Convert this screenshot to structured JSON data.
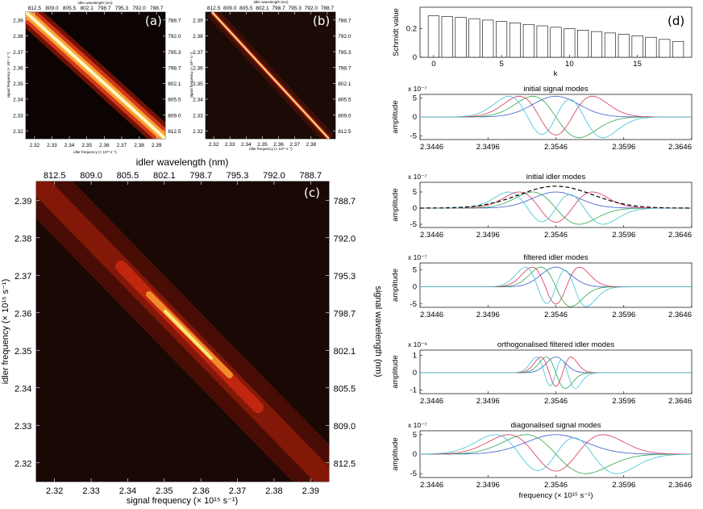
{
  "chart_data": [
    {
      "id": "a",
      "type": "heatmap",
      "panel_label": "(a)",
      "top_xlabel": "idler wavelength (nm)",
      "top_ticks": [
        "812.5",
        "809.0",
        "805.5",
        "802.1",
        "798.7",
        "795.3",
        "792.0",
        "788.7"
      ],
      "xlabel": "idler frequency (× 10¹⁵ s⁻¹)",
      "x_ticks": [
        "2.32",
        "2.33",
        "2.34",
        "2.35",
        "2.36",
        "2.37",
        "2.38",
        "2.39"
      ],
      "ylabel": "signal frequency (× 10¹⁵ s⁻¹)",
      "y_ticks": [
        "2.39",
        "2.38",
        "2.37",
        "2.36",
        "2.35",
        "2.34",
        "2.33",
        "2.32"
      ],
      "right_ticks": [
        "788.7",
        "792.0",
        "795.3",
        "798.7",
        "802.1",
        "805.5",
        "809.0",
        "812.5"
      ],
      "xlim": [
        2.315,
        2.395
      ],
      "ylim": [
        2.315,
        2.395
      ],
      "ridge": {
        "description_free": true,
        "sum_frequency": 4.71,
        "width": 0.012
      }
    },
    {
      "id": "b",
      "type": "heatmap",
      "panel_label": "(b)",
      "top_xlabel": "idler wavelength (nm)",
      "top_ticks": [
        "812.5",
        "809.0",
        "805.5",
        "802.1",
        "798.7",
        "795.3",
        "792.0",
        "788.7"
      ],
      "xlabel": "idler frequency (× 10¹⁵ s⁻¹)",
      "x_ticks": [
        "2.32",
        "2.33",
        "2.34",
        "2.35",
        "2.36",
        "2.37",
        "2.38"
      ],
      "ylabel": "signal frequency (× 10¹⁵ s⁻¹)",
      "y_ticks": [
        "2.39",
        "2.38",
        "2.37",
        "2.36",
        "2.35",
        "2.34",
        "2.33",
        "2.32"
      ],
      "right_ticks": [
        "788.7",
        "792.0",
        "795.3",
        "798.7",
        "802.1",
        "805.5",
        "809.0",
        "812.5"
      ],
      "xlim": [
        2.315,
        2.395
      ],
      "ylim": [
        2.315,
        2.395
      ],
      "ridge": {
        "sum_frequency": 4.711,
        "width": 0.0015
      }
    },
    {
      "id": "c",
      "type": "heatmap",
      "panel_label": "(c)",
      "top_xlabel": "idler wavelength (nm)",
      "top_ticks": [
        "812.5",
        "809.0",
        "805.5",
        "802.1",
        "798.7",
        "795.3",
        "792.0",
        "788.7"
      ],
      "xlabel": "signal frequency (× 10¹⁵ s⁻¹)",
      "x_ticks": [
        "2.32",
        "2.33",
        "2.34",
        "2.35",
        "2.36",
        "2.37",
        "2.38",
        "2.39"
      ],
      "ylabel": "idler frequency (× 10¹⁵ s⁻¹)",
      "y_ticks": [
        "2.39",
        "2.38",
        "2.37",
        "2.36",
        "2.35",
        "2.34",
        "2.33",
        "2.32"
      ],
      "right_ylabel": "signal wavelength (nm)",
      "right_ticks": [
        "788.7",
        "792.0",
        "795.3",
        "798.7",
        "802.1",
        "805.5",
        "809.0",
        "812.5"
      ],
      "xlim": [
        2.315,
        2.395
      ],
      "ylim": [
        2.315,
        2.395
      ],
      "ridge": {
        "sum_frequency": 4.71,
        "center": 2.3546,
        "width": 0.006
      }
    },
    {
      "id": "d",
      "type": "bar",
      "panel_label": "(d)",
      "xlabel": "k",
      "ylabel": "Schmidt value",
      "x_ticks": [
        "0",
        "5",
        "10",
        "15"
      ],
      "y_ticks": [
        "0",
        "0.2"
      ],
      "ylim": [
        0,
        0.35
      ],
      "categories": [
        0,
        1,
        2,
        3,
        4,
        5,
        6,
        7,
        8,
        9,
        10,
        11,
        12,
        13,
        14,
        15,
        16,
        17,
        18
      ],
      "values": [
        0.29,
        0.285,
        0.28,
        0.27,
        0.26,
        0.25,
        0.24,
        0.23,
        0.22,
        0.21,
        0.2,
        0.19,
        0.18,
        0.17,
        0.16,
        0.15,
        0.14,
        0.125,
        0.11
      ]
    },
    {
      "id": "e",
      "type": "line",
      "title": "initial signal modes",
      "ylabel": "amplitude",
      "exponent": "x 10⁻⁷",
      "y_ticks": [
        "5",
        "0",
        "-5"
      ],
      "ylim": [
        -6,
        6
      ],
      "x_ticks": [
        "2.3446",
        "2.3496",
        "2.3546",
        "2.3596",
        "2.3646"
      ],
      "xlim": [
        2.3446,
        2.3646
      ],
      "center": 2.3546,
      "spacing": 0.0017,
      "scale": 5.5,
      "modes": 4,
      "dashed_envelope": false
    },
    {
      "id": "f",
      "type": "line",
      "title": "initial idler modes",
      "ylabel": "amplitude",
      "exponent": "x 10⁻⁷",
      "y_ticks": [
        "5",
        "0",
        "-5"
      ],
      "ylim": [
        -6,
        8
      ],
      "x_ticks": [
        "2.3446",
        "2.3496",
        "2.3546",
        "2.3596",
        "2.3646"
      ],
      "xlim": [
        2.3446,
        2.3646
      ],
      "center": 2.3546,
      "spacing": 0.0017,
      "scale": 5.0,
      "modes": 4,
      "dashed_envelope": true,
      "envelope_peak": 6.8
    },
    {
      "id": "g",
      "type": "line",
      "title": "filtered idler modes",
      "ylabel": "amplitude",
      "exponent": "x 10⁻⁷",
      "y_ticks": [
        "5",
        "0",
        "-5"
      ],
      "ylim": [
        -6,
        7
      ],
      "x_ticks": [
        "2.3446",
        "2.3496",
        "2.3546",
        "2.3596",
        "2.3646"
      ],
      "xlim": [
        2.3446,
        2.3646
      ],
      "center": 2.3546,
      "spacing": 0.0011,
      "scale": 5.8,
      "modes": 4,
      "dashed_envelope": false
    },
    {
      "id": "h",
      "type": "line",
      "title": "orthogonalised filtered idler modes",
      "ylabel": "amplitude",
      "exponent": "x 10⁻⁶",
      "y_ticks": [
        "1",
        "0",
        "-1"
      ],
      "ylim": [
        -1.2,
        1.3
      ],
      "x_ticks": [
        "2.3446",
        "2.3496",
        "2.3546",
        "2.3596",
        "2.3646"
      ],
      "xlim": [
        2.3446,
        2.3646
      ],
      "center": 2.3546,
      "spacing": 0.0007,
      "scale": 0.9,
      "modes": 4,
      "dashed_envelope": false
    },
    {
      "id": "i",
      "type": "line",
      "title": "diagonalised signal modes",
      "ylabel": "amplitude",
      "exponent": "x 10⁻⁷",
      "y_ticks": [
        "5",
        "0",
        "-5"
      ],
      "ylim": [
        -6,
        6
      ],
      "x_ticks": [
        "2.3446",
        "2.3496",
        "2.3546",
        "2.3596",
        "2.3646"
      ],
      "xlim": [
        2.3446,
        2.3646
      ],
      "xlabel": "frequency (× 10¹⁵ s⁻¹)",
      "center": 2.3546,
      "spacing": 0.0022,
      "scale": 5.0,
      "modes": 4,
      "dashed_envelope": false
    }
  ],
  "colors": {
    "mode_colors": [
      "#3b5bcc",
      "#2ea84a",
      "#d8335e",
      "#3fc2d6",
      "#b040b0"
    ],
    "heat_dark": "#0b0402",
    "heat_mid": "#c0270e",
    "heat_hot": "#ffe36a",
    "heat_white": "#ffffe8"
  }
}
